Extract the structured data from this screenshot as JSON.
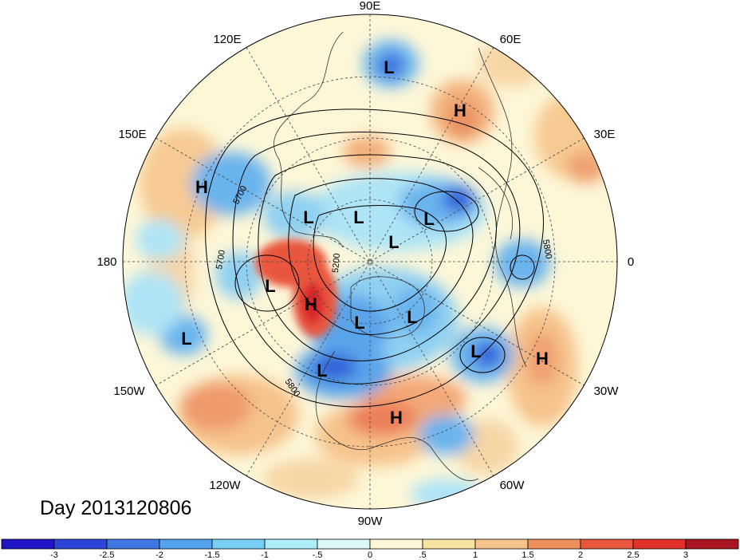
{
  "map": {
    "projection": "north-polar-stereographic",
    "longitude_labels": [
      "90E",
      "60E",
      "30E",
      "0",
      "30W",
      "60W",
      "90W",
      "120W",
      "150W",
      "180",
      "150E",
      "120E"
    ],
    "pressure_centers": [
      "L",
      "H",
      "H",
      "L",
      "L",
      "L",
      "L",
      "L",
      "L",
      "H",
      "L",
      "L",
      "L",
      "L",
      "H",
      "H"
    ],
    "contour_labels": [
      "5700",
      "5700",
      "5200",
      "5800",
      "5800"
    ],
    "colors": {
      "strong_negative": "#2c4fd6",
      "negative": "#8fd0f2",
      "neutral": "#fdf7d8",
      "positive": "#f6c38b",
      "strong_positive": "#e2302a"
    }
  },
  "title": "Day 2013120806",
  "colorbar": {
    "ticks": [
      "-3",
      "-2.5",
      "-2",
      "-1.5",
      "-1",
      "-.5",
      "0",
      ".5",
      "1",
      "1.5",
      "2",
      "2.5",
      "3"
    ],
    "colors": [
      "#1f13c4",
      "#2e46d8",
      "#3f77e4",
      "#53a2ef",
      "#78cff6",
      "#aeeefa",
      "#def8fa",
      "#fdf7d8",
      "#f8e4a2",
      "#f6c38b",
      "#ef8f5e",
      "#e9573c",
      "#e2302a",
      "#a8141f"
    ]
  }
}
